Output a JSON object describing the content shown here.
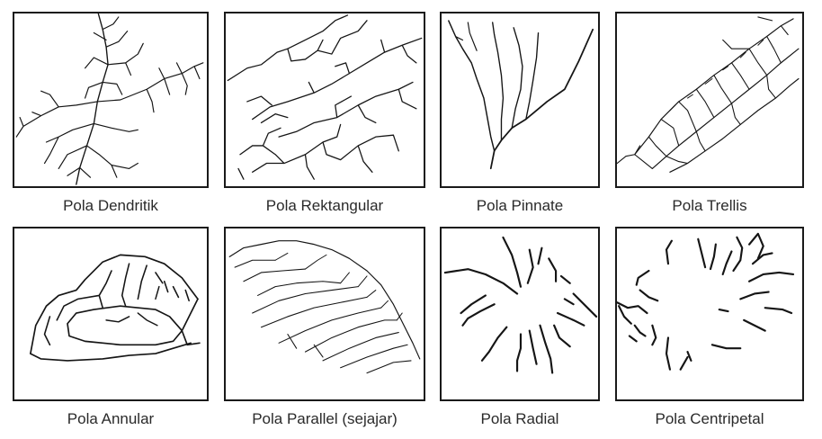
{
  "patterns": [
    {
      "label": "Pola Dendritik",
      "icon": "dendritic-pattern-icon"
    },
    {
      "label": "Pola Rektangular",
      "icon": "rectangular-pattern-icon"
    },
    {
      "label": "Pola Pinnate",
      "icon": "pinnate-pattern-icon"
    },
    {
      "label": "Pola Trellis",
      "icon": "trellis-pattern-icon"
    },
    {
      "label": "Pola Annular",
      "icon": "annular-pattern-icon"
    },
    {
      "label": "Pola Parallel (sejajar)",
      "icon": "parallel-pattern-icon"
    },
    {
      "label": "Pola Radial",
      "icon": "radial-pattern-icon"
    },
    {
      "label": "Pola Centripetal",
      "icon": "centripetal-pattern-icon"
    }
  ],
  "colors": {
    "line": "#151515",
    "frame": "#1a1a1a",
    "caption": "#2a2a2a"
  }
}
